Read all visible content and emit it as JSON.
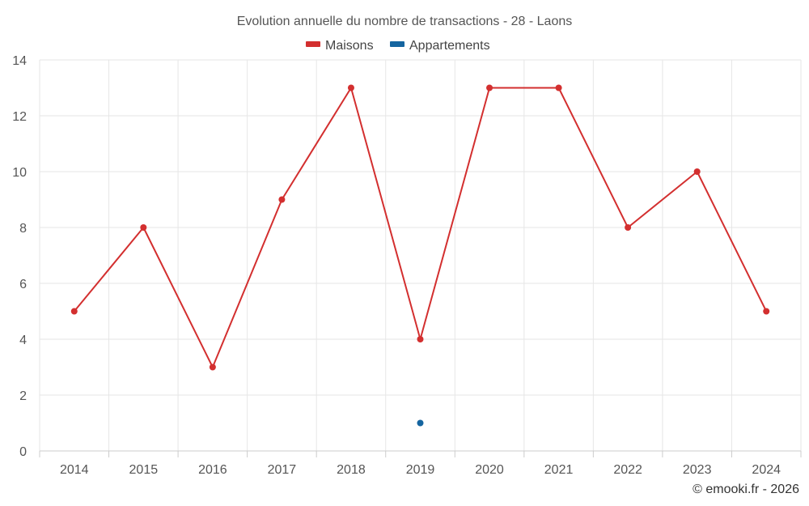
{
  "chart_data": {
    "type": "line",
    "title": "Evolution annuelle du nombre de transactions - 28 - Laons",
    "categories": [
      "2014",
      "2015",
      "2016",
      "2017",
      "2018",
      "2019",
      "2020",
      "2021",
      "2022",
      "2023",
      "2024"
    ],
    "series": [
      {
        "name": "Maisons",
        "color": "#d32f2f",
        "values": [
          5,
          8,
          3,
          9,
          13,
          4,
          13,
          13,
          8,
          10,
          5
        ]
      },
      {
        "name": "Appartements",
        "color": "#1565a0",
        "values": [
          null,
          null,
          null,
          null,
          null,
          1,
          null,
          null,
          null,
          null,
          null
        ]
      }
    ],
    "ylim": [
      0,
      14
    ],
    "yticks": [
      0,
      2,
      4,
      6,
      8,
      10,
      12,
      14
    ],
    "xlabel": "",
    "ylabel": "",
    "grid": true,
    "legend": "top-center"
  },
  "credit": "© emooki.fr - 2026"
}
